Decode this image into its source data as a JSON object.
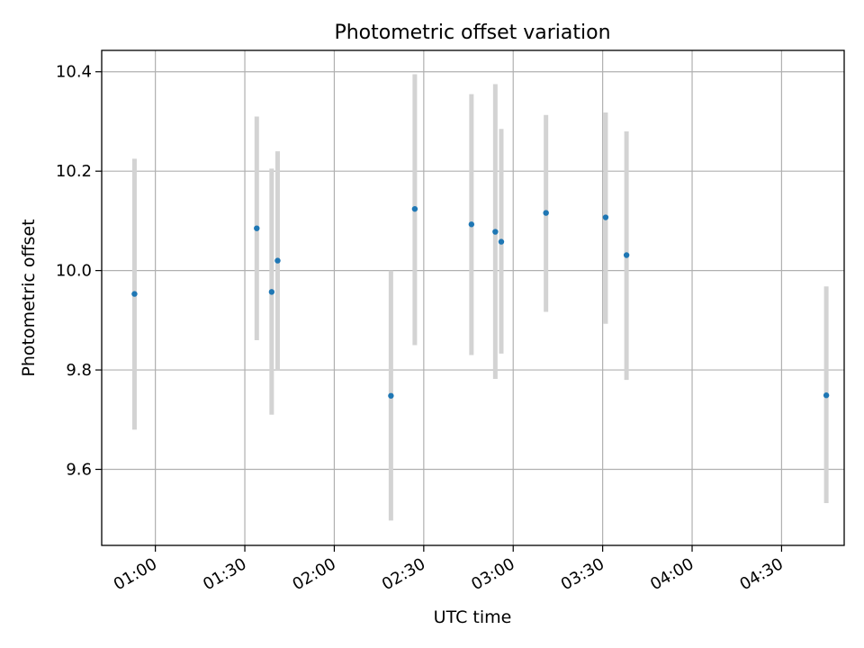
{
  "chart_data": {
    "type": "scatter",
    "title": "Photometric offset variation",
    "xlabel": "UTC time",
    "ylabel": "Photometric offset",
    "x_ticks": [
      "01:00",
      "01:30",
      "02:00",
      "02:30",
      "03:00",
      "03:30",
      "04:00",
      "04:30"
    ],
    "y_ticks": [
      "9.6",
      "9.8",
      "10.0",
      "10.2",
      "10.4"
    ],
    "xlim": [
      "00:42",
      "04:51"
    ],
    "ylim": [
      9.447,
      10.443
    ],
    "grid": true,
    "points": [
      {
        "x": "00:53",
        "y": 9.953,
        "ylow": 9.68,
        "yhigh": 10.225
      },
      {
        "x": "01:34",
        "y": 10.085,
        "ylow": 9.86,
        "yhigh": 10.31
      },
      {
        "x": "01:39",
        "y": 9.957,
        "ylow": 9.71,
        "yhigh": 10.205
      },
      {
        "x": "01:41",
        "y": 10.02,
        "ylow": 9.8,
        "yhigh": 10.24
      },
      {
        "x": "02:19",
        "y": 9.748,
        "ylow": 9.497,
        "yhigh": 10.0
      },
      {
        "x": "02:27",
        "y": 10.124,
        "ylow": 9.85,
        "yhigh": 10.395
      },
      {
        "x": "02:46",
        "y": 10.093,
        "ylow": 9.83,
        "yhigh": 10.355
      },
      {
        "x": "02:54",
        "y": 10.078,
        "ylow": 9.782,
        "yhigh": 10.375
      },
      {
        "x": "02:56",
        "y": 10.058,
        "ylow": 9.833,
        "yhigh": 10.285
      },
      {
        "x": "03:11",
        "y": 10.116,
        "ylow": 9.917,
        "yhigh": 10.313
      },
      {
        "x": "03:31",
        "y": 10.107,
        "ylow": 9.893,
        "yhigh": 10.318
      },
      {
        "x": "03:38",
        "y": 10.031,
        "ylow": 9.78,
        "yhigh": 10.28
      },
      {
        "x": "04:45",
        "y": 9.749,
        "ylow": 9.532,
        "yhigh": 9.968
      }
    ],
    "colors": {
      "point": "#1f77b4",
      "errorbar": "#d3d3d3",
      "grid": "#b0b0b0"
    }
  }
}
